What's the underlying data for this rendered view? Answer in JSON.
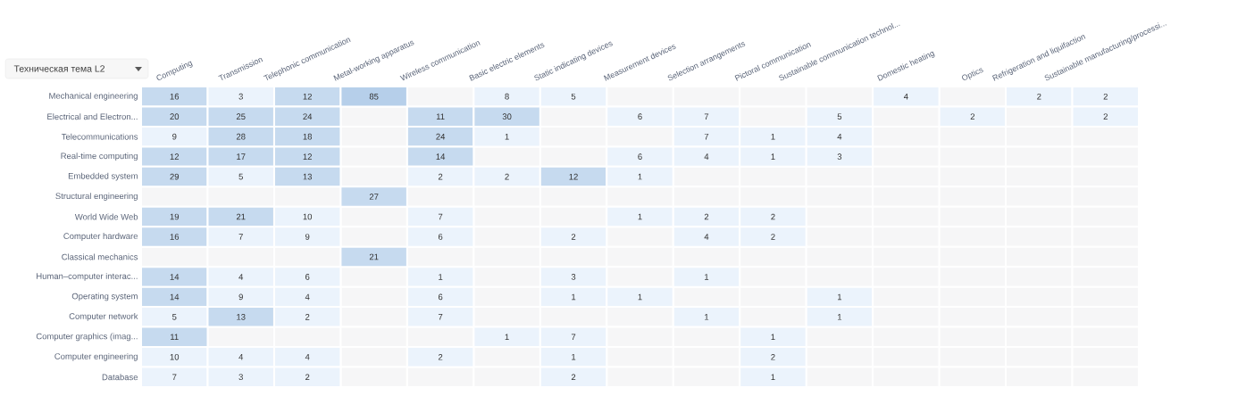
{
  "chart_data": {
    "type": "heatmap",
    "categories": [
      "Computing",
      "Transmission",
      "Telephonic communication",
      "Metal-working apparatus",
      "Wireless communication",
      "Basic electric elements",
      "Static indicating devices",
      "Measurement devices",
      "Selection arrangements",
      "Pictoral communication",
      "Sustainable communication technol...",
      "Domestic heating",
      "Optics",
      "Refrigeration and liquifaction",
      "Sustainable manufacturing/processi..."
    ],
    "y_categories": [
      "Mechanical engineering",
      "Electrical and Electron...",
      "Telecommunications",
      "Real-time computing",
      "Embedded system",
      "Structural engineering",
      "World Wide Web",
      "Computer hardware",
      "Classical mechanics",
      "Human–computer interac...",
      "Operating system",
      "Computer network",
      "Computer graphics (imag...",
      "Computer engineering",
      "Database"
    ],
    "cells": [
      [
        16,
        3,
        12,
        85,
        null,
        8,
        5,
        null,
        null,
        null,
        null,
        4,
        null,
        2,
        2
      ],
      [
        20,
        25,
        24,
        null,
        11,
        30,
        null,
        6,
        7,
        null,
        5,
        null,
        2,
        null,
        2
      ],
      [
        9,
        28,
        18,
        null,
        24,
        1,
        null,
        null,
        7,
        1,
        4,
        null,
        null,
        null,
        null
      ],
      [
        12,
        17,
        12,
        null,
        14,
        null,
        null,
        6,
        4,
        1,
        3,
        null,
        null,
        null,
        null
      ],
      [
        29,
        5,
        13,
        null,
        2,
        2,
        12,
        1,
        null,
        null,
        null,
        null,
        null,
        null,
        null
      ],
      [
        null,
        null,
        null,
        27,
        null,
        null,
        null,
        null,
        null,
        null,
        null,
        null,
        null,
        null,
        null
      ],
      [
        19,
        21,
        10,
        null,
        7,
        null,
        null,
        1,
        2,
        2,
        null,
        null,
        null,
        null,
        null
      ],
      [
        16,
        7,
        9,
        null,
        6,
        null,
        2,
        null,
        4,
        2,
        null,
        null,
        null,
        null,
        null
      ],
      [
        null,
        null,
        null,
        21,
        null,
        null,
        null,
        null,
        null,
        null,
        null,
        null,
        null,
        null,
        null
      ],
      [
        14,
        4,
        6,
        null,
        1,
        null,
        3,
        null,
        1,
        null,
        null,
        null,
        null,
        null,
        null
      ],
      [
        14,
        9,
        4,
        null,
        6,
        null,
        1,
        1,
        null,
        null,
        1,
        null,
        null,
        null,
        null
      ],
      [
        5,
        13,
        2,
        null,
        7,
        null,
        null,
        null,
        1,
        null,
        1,
        null,
        null,
        null,
        null
      ],
      [
        11,
        null,
        null,
        null,
        null,
        1,
        7,
        null,
        null,
        1,
        null,
        null,
        null,
        null,
        null
      ],
      [
        10,
        4,
        4,
        null,
        2,
        null,
        1,
        null,
        null,
        2,
        null,
        null,
        null,
        null,
        null
      ],
      [
        7,
        3,
        2,
        null,
        null,
        null,
        2,
        null,
        null,
        1,
        null,
        null,
        null,
        null,
        null
      ]
    ],
    "data_labels": true,
    "annotations": [
      "Техническая тема L2"
    ]
  }
}
